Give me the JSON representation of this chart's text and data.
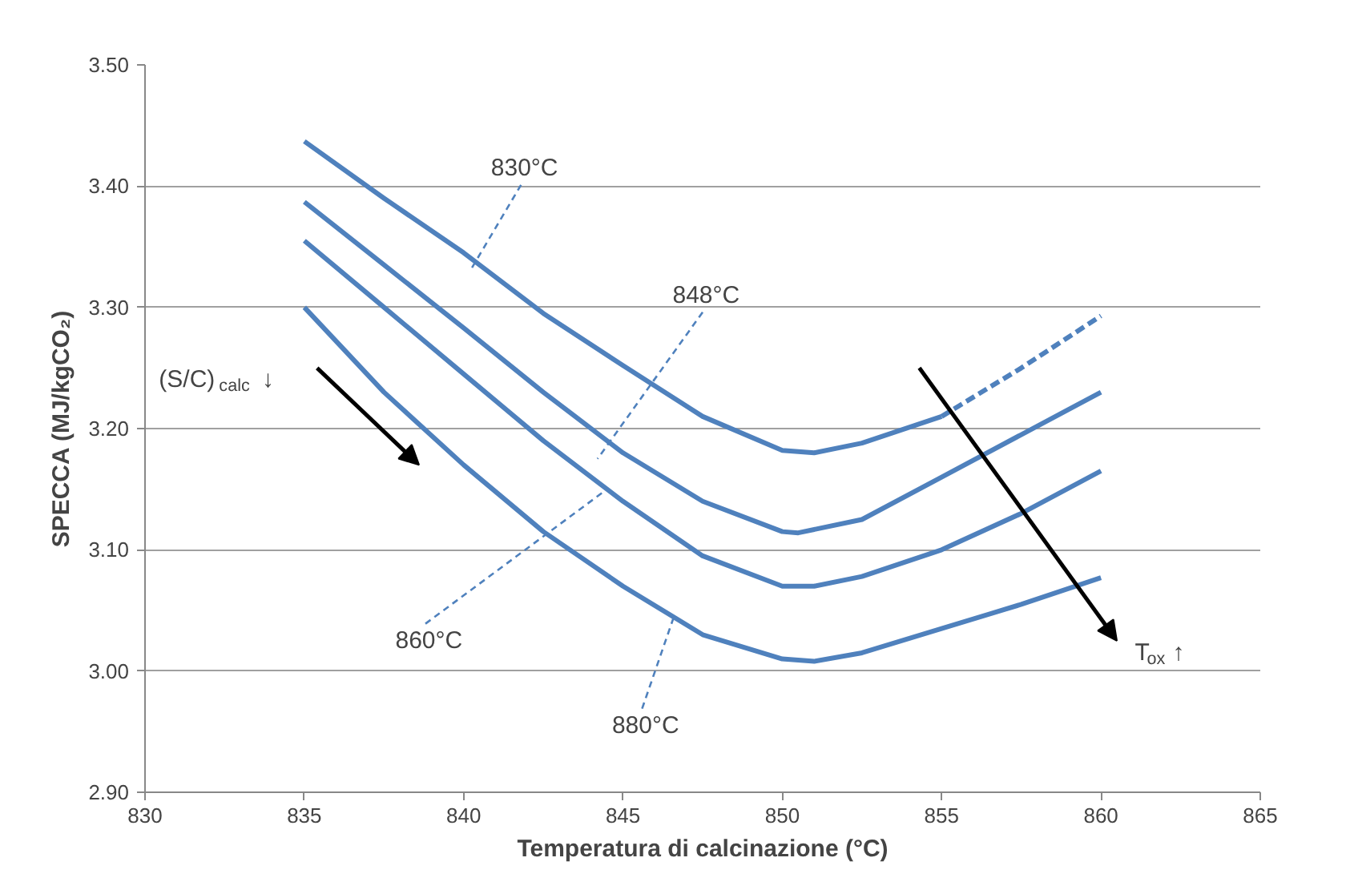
{
  "chart_data": {
    "type": "line",
    "xlabel": "Temperatura di calcinazione (°C)",
    "ylabel": "SPECCA (MJ/kgCO₂)",
    "xlim": [
      830,
      865
    ],
    "xticks": [
      830,
      835,
      840,
      845,
      850,
      855,
      860,
      865
    ],
    "ylim": [
      2.9,
      3.5
    ],
    "yticks": [
      {
        "value": 2.9,
        "label": "2.90"
      },
      {
        "value": 3.0,
        "label": "3.00"
      },
      {
        "value": 3.1,
        "label": "3.10"
      },
      {
        "value": 3.2,
        "label": "3.20"
      },
      {
        "value": 3.3,
        "label": "3.30"
      },
      {
        "value": 3.4,
        "label": "3.40"
      },
      {
        "value": 3.5,
        "label": "3.50"
      }
    ],
    "grid": "y",
    "marker": "none",
    "series": [
      {
        "color": "#4f81bd",
        "line_style": "solid",
        "x": [
          835,
          837.5,
          840,
          842.5,
          845,
          847.5,
          850,
          851,
          852.5,
          855
        ],
        "values": [
          3.437,
          3.39,
          3.345,
          3.295,
          3.252,
          3.21,
          3.182,
          3.18,
          3.188,
          3.21
        ]
      },
      {
        "color": "#4f81bd",
        "line_style": "dashed",
        "x": [
          855,
          857.5,
          860
        ],
        "values": [
          3.21,
          3.25,
          3.293
        ]
      },
      {
        "color": "#4f81bd",
        "line_style": "solid",
        "x": [
          835,
          837.5,
          840,
          842.5,
          845,
          847.5,
          850,
          850.5,
          852.5,
          855,
          857.5,
          860
        ],
        "values": [
          3.387,
          3.335,
          3.283,
          3.23,
          3.18,
          3.14,
          3.115,
          3.114,
          3.125,
          3.16,
          3.195,
          3.23
        ]
      },
      {
        "color": "#4f81bd",
        "line_style": "solid",
        "x": [
          835,
          837.5,
          840,
          842.5,
          845,
          847.5,
          850,
          851,
          852.5,
          855,
          857.5,
          860
        ],
        "values": [
          3.355,
          3.3,
          3.245,
          3.19,
          3.14,
          3.095,
          3.07,
          3.07,
          3.078,
          3.1,
          3.13,
          3.165
        ]
      },
      {
        "color": "#4f81bd",
        "line_style": "solid",
        "x": [
          835,
          837.5,
          840,
          842.5,
          845,
          847.5,
          850,
          851,
          852.5,
          855,
          857.5,
          860
        ],
        "values": [
          3.3,
          3.23,
          3.17,
          3.115,
          3.07,
          3.03,
          3.01,
          3.008,
          3.015,
          3.035,
          3.055,
          3.077
        ]
      }
    ],
    "annotations": [
      "830°C",
      "848°C",
      {
        "text": "860°C",
        "x": 844.5,
        "y": 3.15
      },
      {
        "text": "880°C",
        "x": 846.6,
        "y": 3.045
      },
      "(S/C)$_{calc}$ ↓",
      "T$_{ox}$ ↑"
    ]
  }
}
